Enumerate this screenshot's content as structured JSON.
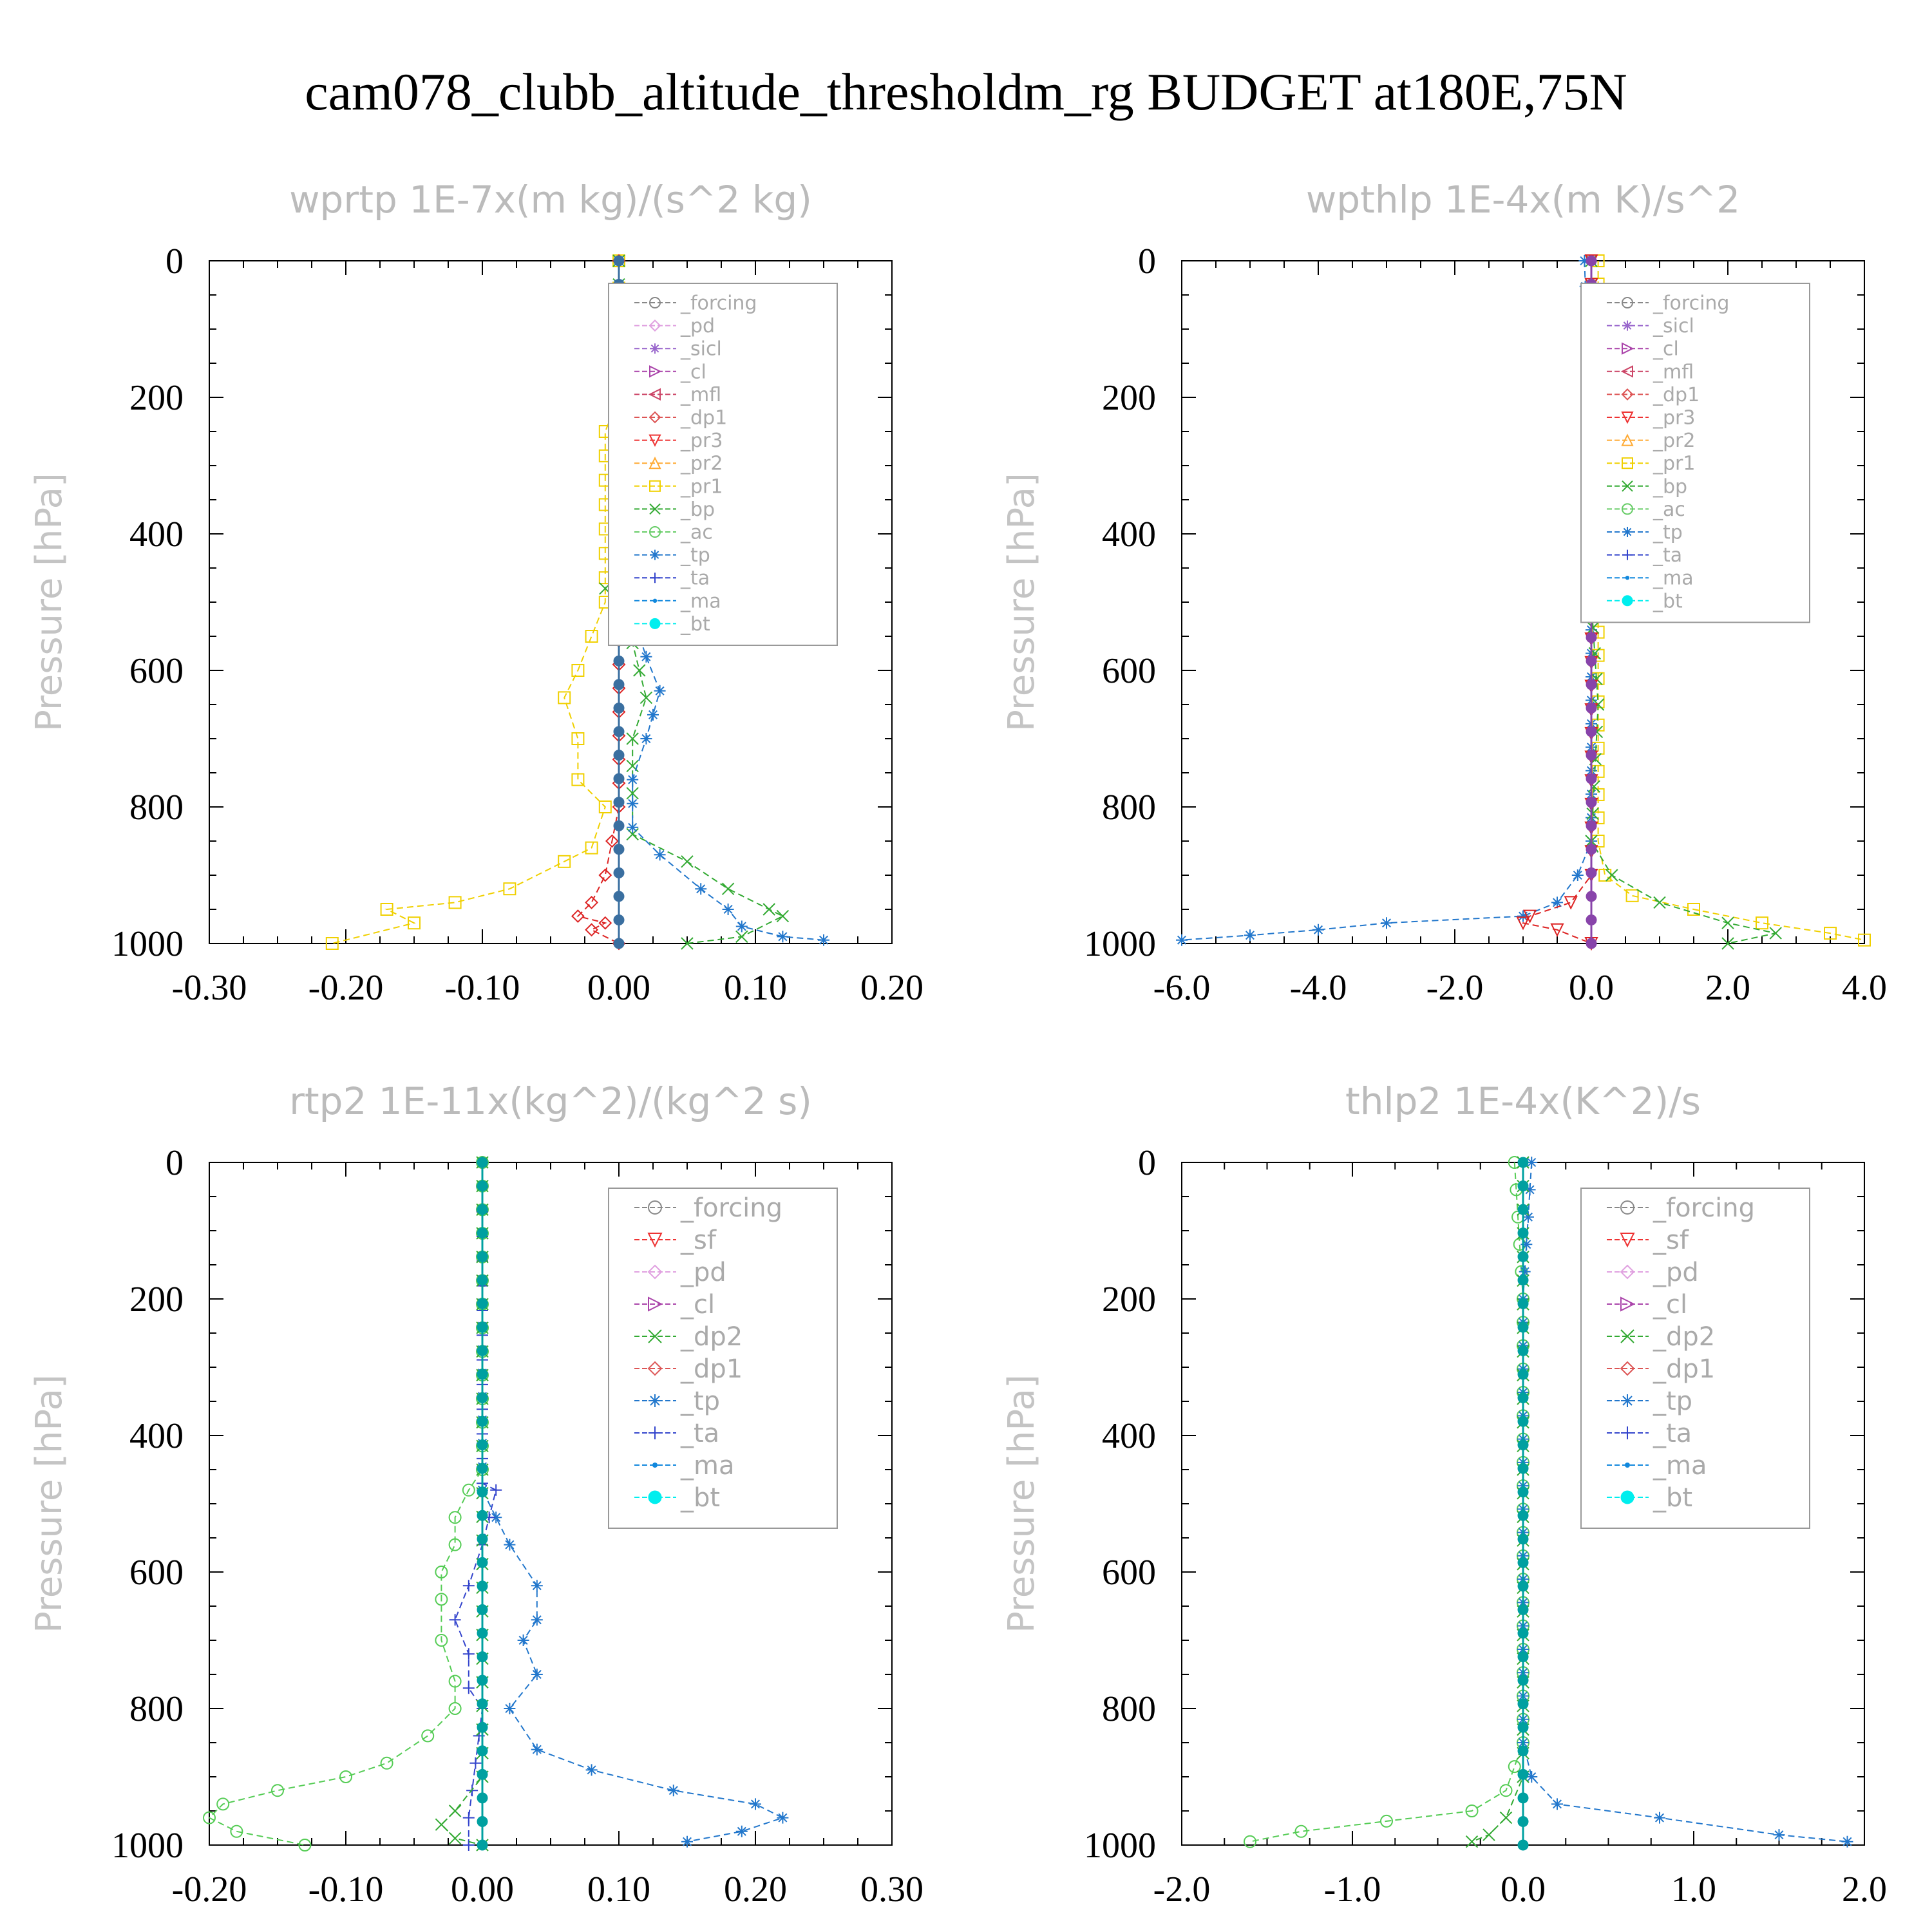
{
  "title": "cam078_clubb_altitude_thresholdm_rg  BUDGET at180E,75N",
  "chart_data": [
    {
      "type": "line",
      "title": "wprtp  1E-7x(m kg)/(s^2 kg)",
      "ylabel": "Pressure [hPa]",
      "xlim": [
        -0.3,
        0.2
      ],
      "ylim": [
        0,
        1000
      ],
      "y_inverted": true,
      "xticks": [
        "-0.30",
        "-0.20",
        "-0.10",
        "0.00",
        "0.10",
        "0.20"
      ],
      "yticks": [
        "0",
        "200",
        "400",
        "600",
        "800",
        "1000"
      ],
      "legend_position": "top-right",
      "legend": [
        "_forcing",
        "_pd",
        "_sicl",
        "_cl",
        "_mfl",
        "_dp1",
        "_pr3",
        "_pr2",
        "_pr1",
        "_bp",
        "_ac",
        "_tp",
        "_ta",
        "_ma",
        "_bt"
      ],
      "series": [
        {
          "name": "_pr1",
          "color": "#f0d000",
          "marker": "square",
          "points": [
            [
              0,
              0
            ],
            [
              0,
              200
            ],
            [
              -0.01,
              250
            ],
            [
              -0.01,
              500
            ],
            [
              -0.02,
              550
            ],
            [
              -0.03,
              600
            ],
            [
              -0.04,
              640
            ],
            [
              -0.03,
              700
            ],
            [
              -0.03,
              760
            ],
            [
              -0.01,
              800
            ],
            [
              -0.02,
              860
            ],
            [
              -0.04,
              880
            ],
            [
              -0.08,
              920
            ],
            [
              -0.12,
              940
            ],
            [
              -0.17,
              950
            ],
            [
              -0.15,
              970
            ],
            [
              -0.21,
              1000
            ]
          ]
        },
        {
          "name": "_bp",
          "color": "#33aa33",
          "marker": "x",
          "points": [
            [
              0,
              0
            ],
            [
              0,
              450
            ],
            [
              -0.01,
              480
            ],
            [
              0,
              500
            ],
            [
              0.01,
              560
            ],
            [
              0.02,
              640
            ],
            [
              0.01,
              700
            ],
            [
              0.01,
              780
            ],
            [
              0.01,
              840
            ],
            [
              0.05,
              880
            ],
            [
              0.08,
              920
            ],
            [
              0.11,
              950
            ],
            [
              0.12,
              960
            ],
            [
              0.09,
              990
            ],
            [
              0.05,
              1000
            ]
          ]
        },
        {
          "name": "_tp",
          "color": "#2277cc",
          "marker": "star",
          "points": [
            [
              0,
              0
            ],
            [
              0,
              480
            ],
            [
              0.01,
              520
            ],
            [
              0.02,
              580
            ],
            [
              0.03,
              630
            ],
            [
              0.02,
              700
            ],
            [
              0.01,
              760
            ],
            [
              0.01,
              830
            ],
            [
              0.03,
              870
            ],
            [
              0.06,
              920
            ],
            [
              0.08,
              950
            ],
            [
              0.09,
              975
            ],
            [
              0.12,
              990
            ],
            [
              0.15,
              995
            ]
          ]
        },
        {
          "name": "_dp1",
          "color": "#dd2222",
          "marker": "diamond",
          "points": [
            [
              0,
              0
            ],
            [
              0,
              800
            ],
            [
              -0.01,
              900
            ],
            [
              -0.02,
              940
            ],
            [
              -0.03,
              960
            ],
            [
              -0.01,
              970
            ],
            [
              -0.02,
              980
            ],
            [
              0,
              1000
            ]
          ]
        },
        {
          "name": "_bt",
          "color": "#3a6fa0",
          "marker": "circle",
          "points": [
            [
              0,
              0
            ],
            [
              0,
              1000
            ]
          ]
        }
      ]
    },
    {
      "type": "line",
      "title": "wpthlp  1E-4x(m K)/s^2",
      "ylabel": "Pressure [hPa]",
      "xlim": [
        -6.0,
        4.0
      ],
      "ylim": [
        0,
        1000
      ],
      "y_inverted": true,
      "xticks": [
        "-6.0",
        "-4.0",
        "-2.0",
        "0.0",
        "2.0",
        "4.0"
      ],
      "yticks": [
        "0",
        "200",
        "400",
        "600",
        "800",
        "1000"
      ],
      "legend_position": "top-right",
      "legend": [
        "_forcing",
        "_sicl",
        "_cl",
        "_mfl",
        "_dp1",
        "_pr3",
        "_pr2",
        "_pr1",
        "_bp",
        "_ac",
        "_tp",
        "_ta",
        "_ma",
        "_bt"
      ],
      "series": [
        {
          "name": "_tp",
          "color": "#2277cc",
          "marker": "star",
          "points": [
            [
              -0.1,
              0
            ],
            [
              0,
              300
            ],
            [
              0,
              850
            ],
            [
              -0.2,
              900
            ],
            [
              -0.5,
              940
            ],
            [
              -1.0,
              960
            ],
            [
              -3.0,
              970
            ],
            [
              -4.0,
              980
            ],
            [
              -5.0,
              988
            ],
            [
              -6.0,
              995
            ]
          ]
        },
        {
          "name": "_pr1",
          "color": "#f0d000",
          "marker": "square",
          "points": [
            [
              0.1,
              0
            ],
            [
              0.1,
              850
            ],
            [
              0.2,
              900
            ],
            [
              0.6,
              930
            ],
            [
              1.5,
              950
            ],
            [
              2.5,
              970
            ],
            [
              3.5,
              985
            ],
            [
              4.0,
              995
            ]
          ]
        },
        {
          "name": "_bp",
          "color": "#33aa33",
          "marker": "x",
          "points": [
            [
              0,
              0
            ],
            [
              0,
              500
            ],
            [
              0.1,
              650
            ],
            [
              0,
              850
            ],
            [
              0.3,
              900
            ],
            [
              1.0,
              940
            ],
            [
              2.0,
              970
            ],
            [
              2.7,
              985
            ],
            [
              2.0,
              1000
            ]
          ]
        },
        {
          "name": "_pr3",
          "color": "#dd2222",
          "marker": "down-triangle",
          "points": [
            [
              0,
              0
            ],
            [
              0,
              900
            ],
            [
              -0.3,
              940
            ],
            [
              -0.9,
              960
            ],
            [
              -1.0,
              970
            ],
            [
              -0.5,
              980
            ],
            [
              0,
              1000
            ]
          ]
        },
        {
          "name": "_bt",
          "color": "#8844aa",
          "marker": "circle",
          "points": [
            [
              0,
              0
            ],
            [
              0,
              1000
            ]
          ]
        }
      ]
    },
    {
      "type": "line",
      "title": "rtp2  1E-11x(kg^2)/(kg^2 s)",
      "ylabel": "Pressure [hPa]",
      "xlim": [
        -0.2,
        0.3
      ],
      "ylim": [
        0,
        1000
      ],
      "y_inverted": true,
      "xticks": [
        "-0.20",
        "-0.10",
        "0.00",
        "0.10",
        "0.20",
        "0.30"
      ],
      "yticks": [
        "0",
        "200",
        "400",
        "600",
        "800",
        "1000"
      ],
      "legend_position": "top-right",
      "legend": [
        "_forcing",
        "_sf",
        "_pd",
        "_cl",
        "_dp2",
        "_dp1",
        "_tp",
        "_ta",
        "_ma",
        "_bt"
      ],
      "series": [
        {
          "name": "_dp1",
          "color": "#55cc55",
          "marker": "circle-open",
          "points": [
            [
              0,
              0
            ],
            [
              0,
              450
            ],
            [
              -0.01,
              480
            ],
            [
              -0.02,
              520
            ],
            [
              -0.02,
              560
            ],
            [
              -0.03,
              600
            ],
            [
              -0.03,
              640
            ],
            [
              -0.03,
              700
            ],
            [
              -0.02,
              760
            ],
            [
              -0.02,
              800
            ],
            [
              -0.04,
              840
            ],
            [
              -0.07,
              880
            ],
            [
              -0.1,
              900
            ],
            [
              -0.15,
              920
            ],
            [
              -0.19,
              940
            ],
            [
              -0.2,
              960
            ],
            [
              -0.18,
              980
            ],
            [
              -0.13,
              1000
            ]
          ]
        },
        {
          "name": "_tp",
          "color": "#2277cc",
          "marker": "star",
          "points": [
            [
              0,
              0
            ],
            [
              0,
              480
            ],
            [
              0.01,
              520
            ],
            [
              0.02,
              560
            ],
            [
              0.04,
              620
            ],
            [
              0.04,
              670
            ],
            [
              0.03,
              700
            ],
            [
              0.04,
              750
            ],
            [
              0.02,
              800
            ],
            [
              0.04,
              860
            ],
            [
              0.08,
              890
            ],
            [
              0.14,
              920
            ],
            [
              0.2,
              940
            ],
            [
              0.22,
              960
            ],
            [
              0.19,
              980
            ],
            [
              0.15,
              995
            ]
          ]
        },
        {
          "name": "_ta",
          "color": "#3344cc",
          "marker": "plus",
          "points": [
            [
              0,
              0
            ],
            [
              0,
              470
            ],
            [
              0.01,
              480
            ],
            [
              0,
              560
            ],
            [
              -0.01,
              620
            ],
            [
              -0.02,
              670
            ],
            [
              -0.01,
              720
            ],
            [
              -0.01,
              770
            ],
            [
              0,
              800
            ],
            [
              -0.01,
              960
            ],
            [
              -0.01,
              1000
            ]
          ]
        },
        {
          "name": "_dp2",
          "color": "#33aa33",
          "marker": "x",
          "points": [
            [
              0,
              0
            ],
            [
              0,
              900
            ],
            [
              -0.02,
              950
            ],
            [
              -0.03,
              970
            ],
            [
              -0.02,
              990
            ],
            [
              0,
              1000
            ]
          ]
        },
        {
          "name": "_bt",
          "color": "#00a0a0",
          "marker": "circle",
          "points": [
            [
              0,
              0
            ],
            [
              0,
              1000
            ]
          ]
        }
      ]
    },
    {
      "type": "line",
      "title": "thlp2  1E-4x(K^2)/s",
      "ylabel": "Pressure [hPa]",
      "xlim": [
        -2.0,
        2.0
      ],
      "ylim": [
        0,
        1000
      ],
      "y_inverted": true,
      "xticks": [
        "-2.0",
        "-1.0",
        "0.0",
        "1.0",
        "2.0"
      ],
      "yticks": [
        "0",
        "200",
        "400",
        "600",
        "800",
        "1000"
      ],
      "legend_position": "top-right",
      "legend": [
        "_forcing",
        "_sf",
        "_pd",
        "_cl",
        "_dp2",
        "_dp1",
        "_tp",
        "_ta",
        "_ma",
        "_bt"
      ],
      "series": [
        {
          "name": "_dp1",
          "color": "#55cc55",
          "marker": "circle-open",
          "points": [
            [
              -0.05,
              0
            ],
            [
              0,
              200
            ],
            [
              0,
              850
            ],
            [
              -0.1,
              920
            ],
            [
              -0.3,
              950
            ],
            [
              -0.8,
              965
            ],
            [
              -1.3,
              980
            ],
            [
              -1.6,
              995
            ]
          ]
        },
        {
          "name": "_tp",
          "color": "#2277cc",
          "marker": "star",
          "points": [
            [
              0.05,
              0
            ],
            [
              0,
              200
            ],
            [
              0,
              850
            ],
            [
              0.05,
              900
            ],
            [
              0.2,
              940
            ],
            [
              0.8,
              960
            ],
            [
              1.5,
              985
            ],
            [
              1.9,
              995
            ]
          ]
        },
        {
          "name": "_dp2",
          "color": "#33aa33",
          "marker": "x",
          "points": [
            [
              0,
              0
            ],
            [
              0,
              900
            ],
            [
              -0.1,
              960
            ],
            [
              -0.2,
              985
            ],
            [
              -0.3,
              995
            ]
          ]
        },
        {
          "name": "_bt",
          "color": "#00a0a0",
          "marker": "circle",
          "points": [
            [
              0,
              0
            ],
            [
              0,
              1000
            ]
          ]
        }
      ]
    }
  ]
}
